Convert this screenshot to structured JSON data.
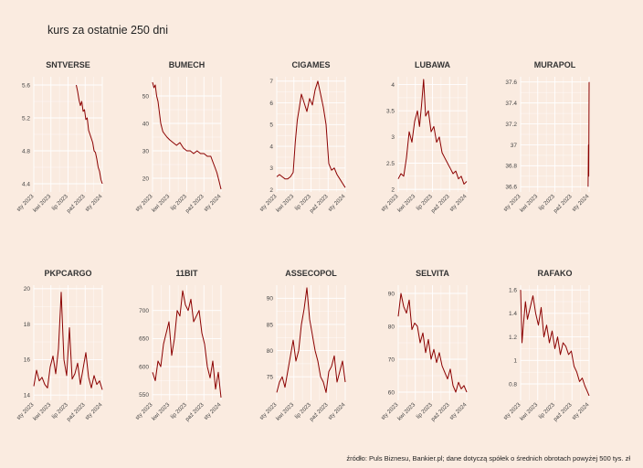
{
  "title": "kurs za ostatnie 250 dni",
  "caption": "źródło: Puls Biznesu, Bankier.pl; dane dotyczą spółek o średnich obrotach powyżej 500 tys. zł",
  "colors": {
    "background": "#faebe0",
    "line": "#8b0000",
    "grid": "#ffffff"
  },
  "chart_data": [
    {
      "type": "line",
      "title": "SNTVERSE",
      "ylim": [
        4.3,
        5.7
      ],
      "yticks": [
        4.4,
        4.8,
        5.2,
        5.6
      ],
      "xtick_labels": [
        "sty 2023",
        "kwi 2023",
        "lip 2023",
        "paź 2023",
        "sty 2024"
      ],
      "xlim": [
        0,
        1
      ],
      "xtick_pos": [
        0.0,
        0.25,
        0.5,
        0.75,
        1.0
      ],
      "series": [
        {
          "x": [
            0.62,
            0.64,
            0.66,
            0.68,
            0.7,
            0.72,
            0.74,
            0.76,
            0.78,
            0.8,
            0.82,
            0.84,
            0.86,
            0.88,
            0.9,
            0.92,
            0.94,
            0.96,
            0.98,
            1.0
          ],
          "values": [
            5.6,
            5.52,
            5.42,
            5.35,
            5.4,
            5.28,
            5.3,
            5.18,
            5.2,
            5.05,
            5.0,
            4.95,
            4.9,
            4.8,
            4.78,
            4.7,
            4.6,
            4.55,
            4.45,
            4.4
          ]
        }
      ]
    },
    {
      "type": "line",
      "title": "BUMECH",
      "ylim": [
        15,
        57
      ],
      "yticks": [
        20,
        30,
        40,
        50
      ],
      "xtick_labels": [
        "sty 2023",
        "kwi 2023",
        "lip 2023",
        "paź 2023",
        "sty 2024"
      ],
      "xlim": [
        0,
        1
      ],
      "xtick_pos": [
        0.0,
        0.25,
        0.5,
        0.75,
        1.0
      ],
      "series": [
        {
          "x": [
            0.0,
            0.02,
            0.04,
            0.06,
            0.08,
            0.1,
            0.12,
            0.15,
            0.18,
            0.21,
            0.25,
            0.3,
            0.35,
            0.4,
            0.45,
            0.5,
            0.55,
            0.6,
            0.65,
            0.7,
            0.75,
            0.8,
            0.85,
            0.88,
            0.91,
            0.94,
            0.97,
            1.0
          ],
          "values": [
            55,
            53,
            54,
            50,
            48,
            44,
            40,
            37,
            36,
            35,
            34,
            33,
            32,
            33,
            31,
            30,
            30,
            29,
            30,
            29,
            29,
            28,
            28,
            26,
            24,
            22,
            19,
            16
          ]
        }
      ]
    },
    {
      "type": "line",
      "title": "CIGAMES",
      "ylim": [
        1.9,
        7.2
      ],
      "yticks": [
        2,
        3,
        4,
        5,
        6,
        7
      ],
      "xtick_labels": [
        "sty 2023",
        "kwi 2023",
        "lip 2023",
        "paź 2023",
        "sty 2024"
      ],
      "xlim": [
        0,
        1
      ],
      "xtick_pos": [
        0.0,
        0.25,
        0.5,
        0.75,
        1.0
      ],
      "series": [
        {
          "x": [
            0.0,
            0.04,
            0.08,
            0.12,
            0.16,
            0.2,
            0.24,
            0.27,
            0.3,
            0.33,
            0.36,
            0.4,
            0.44,
            0.48,
            0.52,
            0.56,
            0.6,
            0.64,
            0.68,
            0.72,
            0.76,
            0.8,
            0.84,
            0.88,
            0.92,
            0.96,
            1.0
          ],
          "values": [
            2.6,
            2.7,
            2.6,
            2.5,
            2.5,
            2.6,
            2.8,
            4.2,
            5.2,
            5.8,
            6.4,
            6.0,
            5.6,
            6.2,
            5.9,
            6.6,
            7.0,
            6.4,
            5.8,
            5.0,
            3.2,
            2.9,
            3.0,
            2.7,
            2.5,
            2.3,
            2.1
          ]
        }
      ]
    },
    {
      "type": "line",
      "title": "LUBAWA",
      "ylim": [
        1.95,
        4.15
      ],
      "yticks": [
        2.0,
        2.5,
        3.0,
        3.5,
        4.0
      ],
      "xtick_labels": [
        "sty 2023",
        "kwi 2023",
        "lip 2023",
        "paź 2023",
        "sty 2024"
      ],
      "xlim": [
        0,
        1
      ],
      "xtick_pos": [
        0.0,
        0.25,
        0.5,
        0.75,
        1.0
      ],
      "series": [
        {
          "x": [
            0.0,
            0.04,
            0.08,
            0.12,
            0.16,
            0.2,
            0.24,
            0.28,
            0.31,
            0.34,
            0.37,
            0.4,
            0.44,
            0.48,
            0.52,
            0.56,
            0.6,
            0.64,
            0.68,
            0.72,
            0.76,
            0.8,
            0.84,
            0.88,
            0.92,
            0.96,
            1.0
          ],
          "values": [
            2.2,
            2.3,
            2.25,
            2.6,
            3.1,
            2.9,
            3.3,
            3.5,
            3.2,
            3.6,
            4.1,
            3.4,
            3.5,
            3.1,
            3.2,
            2.9,
            3.0,
            2.7,
            2.6,
            2.5,
            2.4,
            2.3,
            2.35,
            2.2,
            2.25,
            2.1,
            2.15
          ]
        }
      ]
    },
    {
      "type": "line",
      "title": "MURAPOL",
      "ylim": [
        36.55,
        37.65
      ],
      "yticks": [
        36.6,
        36.8,
        37.0,
        37.2,
        37.4,
        37.6
      ],
      "xtick_labels": [
        "sty 2023",
        "kwi 2023",
        "lip 2023",
        "paź 2023",
        "sty 2024"
      ],
      "xlim": [
        0,
        1
      ],
      "xtick_pos": [
        0.0,
        0.25,
        0.5,
        0.75,
        1.0
      ],
      "series": [
        {
          "x": [
            0.985,
            0.99,
            0.995,
            1.0
          ],
          "values": [
            36.6,
            37.0,
            36.7,
            37.6
          ]
        }
      ]
    },
    {
      "type": "line",
      "title": "PKPCARGO",
      "ylim": [
        13.7,
        20.2
      ],
      "yticks": [
        14,
        16,
        18,
        20
      ],
      "xtick_labels": [
        "sty 2023",
        "kwi 2023",
        "lip 2023",
        "paź 2023",
        "sty 2024"
      ],
      "xlim": [
        0,
        1
      ],
      "xtick_pos": [
        0.0,
        0.25,
        0.5,
        0.75,
        1.0
      ],
      "series": [
        {
          "x": [
            0.0,
            0.04,
            0.08,
            0.12,
            0.16,
            0.2,
            0.24,
            0.28,
            0.32,
            0.36,
            0.4,
            0.44,
            0.48,
            0.52,
            0.56,
            0.6,
            0.64,
            0.68,
            0.72,
            0.76,
            0.8,
            0.84,
            0.88,
            0.92,
            0.96,
            1.0
          ],
          "values": [
            14.5,
            15.4,
            14.8,
            15.0,
            14.6,
            14.4,
            15.6,
            16.2,
            15.2,
            16.6,
            19.8,
            16.0,
            15.1,
            17.8,
            14.9,
            15.2,
            15.8,
            14.6,
            15.5,
            16.4,
            15.0,
            14.4,
            15.1,
            14.6,
            14.8,
            14.3
          ]
        }
      ]
    },
    {
      "type": "line",
      "title": "11BIT",
      "ylim": [
        540,
        745
      ],
      "yticks": [
        550,
        600,
        650,
        700
      ],
      "xtick_labels": [
        "sty 2023",
        "kwi 2023",
        "lip 2023",
        "paź 2023",
        "sty 2024"
      ],
      "xlim": [
        0,
        1
      ],
      "xtick_pos": [
        0.0,
        0.25,
        0.5,
        0.75,
        1.0
      ],
      "series": [
        {
          "x": [
            0.0,
            0.04,
            0.08,
            0.12,
            0.16,
            0.2,
            0.24,
            0.28,
            0.32,
            0.36,
            0.4,
            0.44,
            0.48,
            0.52,
            0.56,
            0.6,
            0.64,
            0.68,
            0.72,
            0.76,
            0.8,
            0.84,
            0.88,
            0.92,
            0.96,
            1.0
          ],
          "values": [
            590,
            575,
            610,
            600,
            640,
            660,
            680,
            620,
            650,
            700,
            690,
            735,
            710,
            700,
            720,
            680,
            690,
            700,
            660,
            640,
            600,
            580,
            610,
            560,
            590,
            545
          ]
        }
      ]
    },
    {
      "type": "line",
      "title": "ASSECOPOL",
      "ylim": [
        70.5,
        92.5
      ],
      "yticks": [
        75,
        80,
        85,
        90
      ],
      "xtick_labels": [
        "sty 2023",
        "kwi 2023",
        "lip 2023",
        "paź 2023",
        "sty 2024"
      ],
      "xlim": [
        0,
        1
      ],
      "xtick_pos": [
        0.0,
        0.25,
        0.5,
        0.75,
        1.0
      ],
      "series": [
        {
          "x": [
            0.0,
            0.04,
            0.08,
            0.12,
            0.16,
            0.2,
            0.24,
            0.28,
            0.32,
            0.36,
            0.4,
            0.44,
            0.48,
            0.52,
            0.56,
            0.6,
            0.64,
            0.68,
            0.72,
            0.76,
            0.8,
            0.84,
            0.88,
            0.92,
            0.96,
            1.0
          ],
          "values": [
            72,
            74,
            75,
            73,
            76,
            79,
            82,
            78,
            80,
            85,
            88,
            92,
            86,
            83,
            80,
            78,
            75,
            74,
            72,
            76,
            77,
            79,
            74,
            76,
            78,
            74
          ]
        }
      ]
    },
    {
      "type": "line",
      "title": "SELVITA",
      "ylim": [
        57.5,
        92.5
      ],
      "yticks": [
        60,
        70,
        80,
        90
      ],
      "xtick_labels": [
        "sty 2023",
        "kwi 2023",
        "lip 2023",
        "paź 2023",
        "sty 2024"
      ],
      "xlim": [
        0,
        1
      ],
      "xtick_pos": [
        0.0,
        0.25,
        0.5,
        0.75,
        1.0
      ],
      "series": [
        {
          "x": [
            0.0,
            0.04,
            0.08,
            0.12,
            0.16,
            0.2,
            0.24,
            0.28,
            0.32,
            0.36,
            0.4,
            0.44,
            0.48,
            0.52,
            0.56,
            0.6,
            0.64,
            0.68,
            0.72,
            0.76,
            0.8,
            0.84,
            0.88,
            0.92,
            0.96,
            1.0
          ],
          "values": [
            83,
            90,
            86,
            84,
            88,
            79,
            81,
            80,
            75,
            78,
            72,
            76,
            70,
            73,
            69,
            72,
            68,
            66,
            64,
            67,
            62,
            60,
            63,
            61,
            62,
            60
          ]
        }
      ]
    },
    {
      "type": "line",
      "title": "RAFAKO",
      "ylim": [
        0.66,
        1.64
      ],
      "yticks": [
        0.8,
        1.0,
        1.2,
        1.4,
        1.6
      ],
      "xtick_labels": [
        "sty 2023",
        "kwi 2023",
        "lip 2023",
        "paź 2023",
        "sty 2024"
      ],
      "xlim": [
        0,
        1
      ],
      "xtick_pos": [
        0.0,
        0.25,
        0.5,
        0.75,
        1.0
      ],
      "series": [
        {
          "x": [
            0.0,
            0.02,
            0.04,
            0.07,
            0.1,
            0.14,
            0.18,
            0.22,
            0.26,
            0.3,
            0.34,
            0.38,
            0.42,
            0.46,
            0.5,
            0.54,
            0.58,
            0.62,
            0.66,
            0.7,
            0.74,
            0.78,
            0.82,
            0.86,
            0.9,
            0.94,
            0.97,
            1.0
          ],
          "values": [
            1.6,
            1.15,
            1.3,
            1.5,
            1.35,
            1.45,
            1.55,
            1.4,
            1.3,
            1.45,
            1.2,
            1.3,
            1.15,
            1.25,
            1.1,
            1.2,
            1.05,
            1.15,
            1.12,
            1.05,
            1.08,
            0.95,
            0.9,
            0.82,
            0.85,
            0.78,
            0.74,
            0.7
          ]
        }
      ]
    }
  ]
}
